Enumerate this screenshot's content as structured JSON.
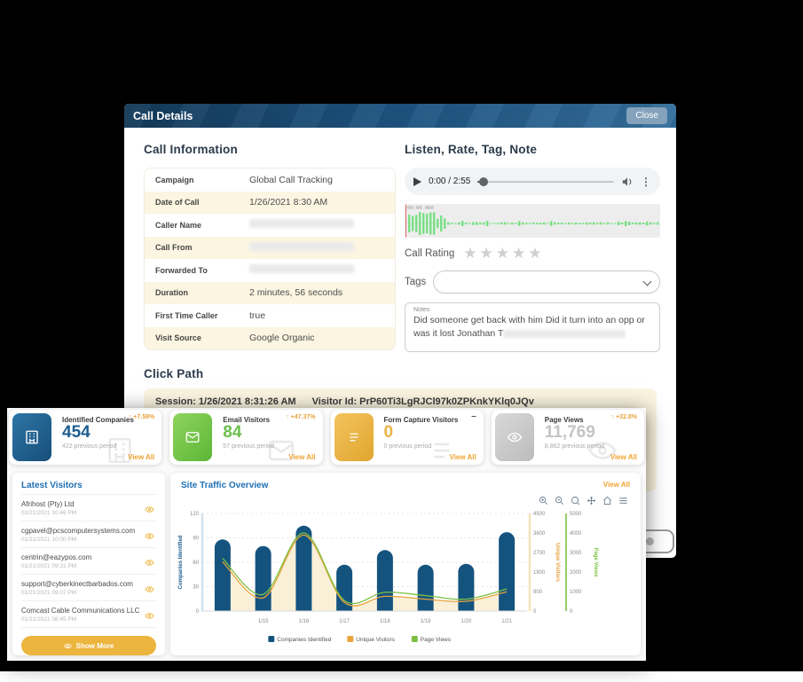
{
  "modal": {
    "title": "Call Details",
    "close_label": "Close",
    "call_info": {
      "heading": "Call Information",
      "rows": [
        {
          "label": "Campaign",
          "value": "Global Call Tracking",
          "redacted": false
        },
        {
          "label": "Date of Call",
          "value": "1/26/2021 8:30 AM",
          "redacted": false
        },
        {
          "label": "Caller Name",
          "value": "",
          "redacted": true
        },
        {
          "label": "Call From",
          "value": "",
          "redacted": true
        },
        {
          "label": "Forwarded To",
          "value": "",
          "redacted": true
        },
        {
          "label": "Duration",
          "value": "2 minutes, 56 seconds",
          "redacted": false
        },
        {
          "label": "First Time Caller",
          "value": "true",
          "redacted": false
        },
        {
          "label": "Visit Source",
          "value": "Google Organic",
          "redacted": false
        }
      ]
    },
    "listen": {
      "heading": "Listen, Rate, Tag, Note",
      "player_time": "0:00 / 2:55",
      "waveform_timestamp": "00:00.000",
      "call_rating_label": "Call Rating",
      "rating_stars": 5,
      "tags_label": "Tags",
      "notes_label": "Notes",
      "notes_text": "Did someone get back with him Did it turn into an opp or was it lost Jonathan T"
    },
    "click_path": {
      "heading": "Click Path",
      "session": "Session: 1/26/2021 8:31:26 AM",
      "visitor_id": "Visitor Id: PrP60Ti3LgRJCl97k0ZPKnkYKlq0JQv"
    }
  },
  "dashboard": {
    "stat_cards": [
      {
        "title": "Identified Companies",
        "value": "454",
        "previous": "422 previous period",
        "change": "+7.58%",
        "change_dir": "up",
        "view_all": "View All",
        "icon": "building-icon",
        "value_color": "#1d5d90",
        "icon_gradient": [
          "#2e76a6",
          "#174e79"
        ]
      },
      {
        "title": "Email Visitors",
        "value": "84",
        "previous": "57 previous period",
        "change": "+47.37%",
        "change_dir": "up",
        "view_all": "View All",
        "icon": "envelope-icon",
        "value_color": "#6abf4b",
        "icon_gradient": [
          "#8fd45e",
          "#5cb637"
        ]
      },
      {
        "title": "Form Capture Visitors",
        "value": "0",
        "previous": "0 previous period",
        "change": "–",
        "change_dir": "none",
        "view_all": "View All",
        "icon": "form-icon",
        "value_color": "#eab248",
        "icon_gradient": [
          "#f3c45e",
          "#e0a52e"
        ]
      },
      {
        "title": "Page Views",
        "value": "11,769",
        "previous": "8,862 previous period",
        "change": "+32.8%",
        "change_dir": "up",
        "view_all": "View All",
        "icon": "eye-icon",
        "value_color": "#c4c4c4",
        "icon_gradient": [
          "#d8d8d8",
          "#bcbcbc"
        ]
      }
    ],
    "latest_visitors": {
      "title": "Latest Visitors",
      "items": [
        {
          "name": "Afrihost (Pty) Ltd",
          "time": "01/21/2021 10:46 PM"
        },
        {
          "name": "cgpavel@pcscomputersystems.com",
          "time": "01/21/2021 10:00 PM"
        },
        {
          "name": "centrin@eazypos.com",
          "time": "01/21/2021 09:31 PM"
        },
        {
          "name": "support@cyberkinectbarbados.com",
          "time": "01/21/2021 09:07 PM"
        },
        {
          "name": "Comcast Cable Communications LLC",
          "time": "01/21/2021 08:45 PM"
        }
      ],
      "show_more_label": "Show More"
    },
    "traffic": {
      "title": "Site Traffic Overview",
      "view_all": "View All",
      "toolbar_icons": [
        "zoom-in-icon",
        "zoom-out-icon",
        "selection-zoom-icon",
        "pan-icon",
        "home-icon",
        "menu-icon"
      ]
    }
  },
  "chart_data": {
    "type": "bar",
    "title": "Site Traffic Overview",
    "x_labels": [
      "",
      "1/15",
      "1/16",
      "1/17",
      "1/18",
      "1/19",
      "1/20",
      "1/21"
    ],
    "series": [
      {
        "name": "Companies Identified",
        "type": "bar",
        "axis": "left",
        "color": "#15537f",
        "values": [
          88,
          80,
          105,
          57,
          75,
          57,
          58,
          97
        ]
      },
      {
        "name": "Unique Visitors",
        "type": "area",
        "axis": "right1",
        "color": "#e8a33d",
        "fill": "#faf0d8",
        "values": [
          2270,
          610,
          3500,
          400,
          680,
          550,
          450,
          890
        ]
      },
      {
        "name": "Page Views",
        "type": "line",
        "axis": "right2",
        "color": "#7cc142",
        "values": [
          2700,
          850,
          4000,
          540,
          960,
          790,
          610,
          1130
        ]
      }
    ],
    "axes": {
      "left": {
        "title": "Companies Identified",
        "color": "#1d5d90",
        "ticks": [
          0,
          30,
          60,
          90,
          120
        ],
        "max": 120
      },
      "right1": {
        "title": "Unique Visitors",
        "color": "#e8a33d",
        "ticks": [
          0,
          900,
          1800,
          2700,
          3600,
          4500
        ],
        "max": 4500
      },
      "right2": {
        "title": "Page Views",
        "color": "#7cc142",
        "ticks": [
          0,
          1000,
          2000,
          3000,
          4000,
          5000
        ],
        "max": 5000
      }
    },
    "legend": [
      "Companies Identified",
      "Unique Visitors",
      "Page Views"
    ],
    "legend_position": "bottom",
    "grid": true
  }
}
